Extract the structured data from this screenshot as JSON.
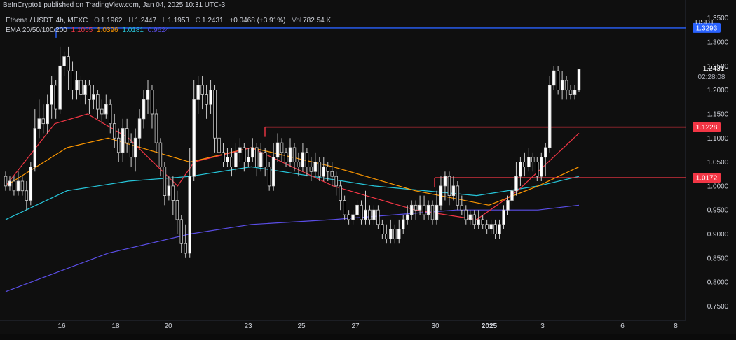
{
  "header": {
    "published": "BeInCrypto1 published on TradingView.com, Jan 04, 2025 10:31 UTC-3"
  },
  "legend": {
    "symbol": "Ethena / USDT, 4h, MEXC",
    "open_label": "O",
    "open": "1.1962",
    "high_label": "H",
    "high": "1.2447",
    "low_label": "L",
    "low": "1.1953",
    "close_label": "C",
    "close": "1.2431",
    "change": "+0.0468 (+3.91%)",
    "volume_label": "Vol",
    "volume": "782.54 K",
    "ema_label": "EMA 20/50/100/200",
    "ema20": "1.1055",
    "ema50": "1.0396",
    "ema100": "1.0181",
    "ema200": "0.9624"
  },
  "currency": "USDT",
  "colors": {
    "background": "#0f0f0f",
    "up_candle": "#ffffff",
    "down_candle": "#000000",
    "wick": "#cfcfcf",
    "ema20": "#f23645",
    "ema50": "#ff9800",
    "ema100": "#26c6da",
    "ema200": "#5b4ee8",
    "resistance": "#f23645",
    "high_line": "#2962ff",
    "axis_text": "#d1d4dc"
  },
  "chart_data": {
    "type": "candlestick",
    "y_ticks": [
      1.35,
      1.3,
      1.25,
      1.2,
      1.15,
      1.1,
      1.05,
      1.0,
      0.95,
      0.9,
      0.85,
      0.8,
      0.75
    ],
    "y_tick_labels": [
      "1.3500",
      "1.3000",
      "1.2500",
      "1.2000",
      "1.1500",
      "1.1000",
      "1.0500",
      "1.0000",
      "0.9500",
      "0.9000",
      "0.8500",
      "0.8000",
      "0.7500"
    ],
    "ylim": [
      0.72,
      1.37
    ],
    "x_ticks": [
      "16",
      "18",
      "20",
      "23",
      "25",
      "27",
      "30",
      "2025",
      "3",
      "6",
      "8"
    ],
    "levels": [
      {
        "value": 1.3293,
        "label": "1.3293",
        "color": "#2962ff"
      },
      {
        "value": 1.1228,
        "label": "1.1228",
        "color": "#f23645"
      },
      {
        "value": 1.0172,
        "label": "1.0172",
        "color": "#f23645"
      }
    ],
    "last_price": {
      "value": 1.2431,
      "label": "1.2431",
      "countdown": "02:28:08"
    },
    "candles": [
      [
        1.02,
        1.0,
        1.03,
        0.99
      ],
      [
        1.0,
        1.01,
        1.02,
        0.99
      ],
      [
        1.01,
        0.99,
        1.02,
        0.98
      ],
      [
        0.99,
        1.01,
        1.03,
        0.98
      ],
      [
        1.01,
        0.99,
        1.02,
        0.98
      ],
      [
        0.99,
        0.97,
        1.01,
        0.95
      ],
      [
        0.97,
        1.04,
        1.05,
        0.96
      ],
      [
        1.04,
        1.12,
        1.16,
        1.03
      ],
      [
        1.12,
        1.14,
        1.18,
        1.1
      ],
      [
        1.14,
        1.13,
        1.17,
        1.11
      ],
      [
        1.13,
        1.17,
        1.19,
        1.11
      ],
      [
        1.17,
        1.21,
        1.23,
        1.14
      ],
      [
        1.21,
        1.16,
        1.22,
        1.14
      ],
      [
        1.16,
        1.25,
        1.29,
        1.15
      ],
      [
        1.25,
        1.27,
        1.28,
        1.23
      ],
      [
        1.27,
        1.24,
        1.29,
        1.2
      ],
      [
        1.24,
        1.2,
        1.26,
        1.18
      ],
      [
        1.2,
        1.22,
        1.24,
        1.18
      ],
      [
        1.22,
        1.19,
        1.23,
        1.17
      ],
      [
        1.19,
        1.21,
        1.22,
        1.17
      ],
      [
        1.21,
        1.18,
        1.22,
        1.15
      ],
      [
        1.18,
        1.19,
        1.21,
        1.16
      ],
      [
        1.19,
        1.16,
        1.2,
        1.14
      ],
      [
        1.16,
        1.15,
        1.18,
        1.13
      ],
      [
        1.15,
        1.17,
        1.19,
        1.14
      ],
      [
        1.17,
        1.13,
        1.18,
        1.11
      ],
      [
        1.13,
        1.1,
        1.15,
        1.08
      ],
      [
        1.1,
        1.07,
        1.12,
        1.05
      ],
      [
        1.07,
        1.12,
        1.14,
        1.05
      ],
      [
        1.12,
        1.09,
        1.14,
        1.07
      ],
      [
        1.09,
        1.06,
        1.11,
        1.04
      ],
      [
        1.06,
        1.1,
        1.12,
        1.03
      ],
      [
        1.1,
        1.14,
        1.16,
        1.08
      ],
      [
        1.14,
        1.18,
        1.2,
        1.12
      ],
      [
        1.18,
        1.2,
        1.22,
        1.15
      ],
      [
        1.2,
        1.15,
        1.21,
        1.12
      ],
      [
        1.15,
        1.09,
        1.16,
        1.07
      ],
      [
        1.09,
        1.04,
        1.1,
        1.02
      ],
      [
        1.04,
        0.98,
        1.05,
        0.96
      ],
      [
        0.98,
        1.0,
        1.02,
        0.97
      ],
      [
        1.0,
        0.97,
        1.02,
        0.94
      ],
      [
        0.97,
        0.93,
        0.99,
        0.9
      ],
      [
        0.93,
        0.88,
        0.94,
        0.86
      ],
      [
        0.88,
        0.86,
        0.92,
        0.85
      ],
      [
        0.86,
        1.02,
        1.08,
        0.85
      ],
      [
        1.02,
        1.18,
        1.22,
        1.01
      ],
      [
        1.18,
        1.21,
        1.23,
        1.15
      ],
      [
        1.21,
        1.19,
        1.23,
        1.16
      ],
      [
        1.19,
        1.17,
        1.21,
        1.14
      ],
      [
        1.17,
        1.2,
        1.22,
        1.15
      ],
      [
        1.2,
        1.1,
        1.21,
        1.07
      ],
      [
        1.1,
        1.07,
        1.12,
        1.05
      ],
      [
        1.07,
        1.05,
        1.09,
        1.04
      ],
      [
        1.05,
        1.06,
        1.08,
        1.04
      ],
      [
        1.06,
        1.04,
        1.08,
        1.02
      ],
      [
        1.04,
        1.07,
        1.09,
        1.03
      ],
      [
        1.07,
        1.08,
        1.1,
        1.05
      ],
      [
        1.08,
        1.05,
        1.09,
        1.03
      ],
      [
        1.05,
        1.06,
        1.08,
        1.04
      ],
      [
        1.06,
        1.08,
        1.1,
        1.05
      ],
      [
        1.08,
        1.04,
        1.09,
        1.02
      ],
      [
        1.04,
        1.07,
        1.09,
        1.03
      ],
      [
        1.07,
        1.04,
        1.08,
        1.02
      ],
      [
        1.04,
        1.0,
        1.05,
        0.99
      ],
      [
        1.0,
        1.06,
        1.09,
        0.99
      ],
      [
        1.06,
        1.09,
        1.11,
        1.05
      ],
      [
        1.09,
        1.07,
        1.1,
        1.05
      ],
      [
        1.07,
        1.05,
        1.08,
        1.04
      ],
      [
        1.05,
        1.08,
        1.1,
        1.04
      ],
      [
        1.08,
        1.05,
        1.09,
        1.03
      ],
      [
        1.05,
        1.04,
        1.07,
        1.02
      ],
      [
        1.04,
        1.07,
        1.09,
        1.03
      ],
      [
        1.07,
        1.04,
        1.08,
        1.02
      ],
      [
        1.04,
        1.03,
        1.06,
        1.01
      ],
      [
        1.03,
        1.05,
        1.07,
        1.02
      ],
      [
        1.05,
        1.02,
        1.06,
        1.01
      ],
      [
        1.02,
        1.04,
        1.06,
        1.01
      ],
      [
        1.04,
        1.03,
        1.05,
        1.01
      ],
      [
        1.03,
        1.02,
        1.05,
        1.0
      ],
      [
        1.02,
        1.0,
        1.03,
        0.98
      ],
      [
        1.0,
        0.97,
        1.01,
        0.95
      ],
      [
        0.97,
        0.94,
        0.98,
        0.93
      ],
      [
        0.94,
        0.93,
        0.95,
        0.92
      ],
      [
        0.93,
        0.94,
        0.95,
        0.92
      ],
      [
        0.94,
        0.96,
        0.97,
        0.93
      ],
      [
        0.96,
        0.93,
        0.97,
        0.92
      ],
      [
        0.93,
        0.95,
        0.99,
        0.92
      ],
      [
        0.95,
        0.93,
        0.96,
        0.92
      ],
      [
        0.93,
        0.95,
        0.96,
        0.92
      ],
      [
        0.95,
        0.92,
        0.96,
        0.91
      ],
      [
        0.92,
        0.9,
        0.93,
        0.89
      ],
      [
        0.9,
        0.89,
        0.92,
        0.88
      ],
      [
        0.89,
        0.91,
        0.93,
        0.88
      ],
      [
        0.91,
        0.89,
        0.92,
        0.88
      ],
      [
        0.89,
        0.91,
        0.93,
        0.88
      ],
      [
        0.91,
        0.93,
        0.94,
        0.9
      ],
      [
        0.93,
        0.94,
        0.96,
        0.92
      ],
      [
        0.94,
        0.96,
        0.97,
        0.93
      ],
      [
        0.96,
        0.95,
        0.97,
        0.93
      ],
      [
        0.95,
        0.96,
        0.98,
        0.94
      ],
      [
        0.96,
        0.94,
        0.98,
        0.93
      ],
      [
        0.94,
        0.96,
        0.97,
        0.93
      ],
      [
        0.96,
        0.93,
        0.97,
        0.92
      ],
      [
        0.93,
        0.96,
        0.99,
        0.92
      ],
      [
        0.96,
        1.0,
        1.02,
        0.95
      ],
      [
        1.0,
        1.02,
        1.03,
        0.97
      ],
      [
        1.02,
        0.98,
        1.03,
        0.96
      ],
      [
        0.98,
        1.0,
        1.02,
        0.97
      ],
      [
        1.0,
        0.96,
        1.01,
        0.95
      ],
      [
        0.96,
        0.95,
        0.98,
        0.94
      ],
      [
        0.95,
        0.93,
        0.96,
        0.92
      ],
      [
        0.93,
        0.94,
        0.95,
        0.92
      ],
      [
        0.94,
        0.92,
        0.95,
        0.91
      ],
      [
        0.92,
        0.93,
        0.95,
        0.91
      ],
      [
        0.93,
        0.92,
        0.94,
        0.91
      ],
      [
        0.92,
        0.91,
        0.93,
        0.9
      ],
      [
        0.91,
        0.92,
        0.93,
        0.9
      ],
      [
        0.92,
        0.9,
        0.93,
        0.89
      ],
      [
        0.9,
        0.92,
        0.93,
        0.89
      ],
      [
        0.92,
        0.95,
        0.96,
        0.91
      ],
      [
        0.95,
        0.97,
        0.98,
        0.94
      ],
      [
        0.97,
        0.99,
        1.0,
        0.96
      ],
      [
        0.99,
        1.02,
        1.05,
        0.98
      ],
      [
        1.02,
        1.05,
        1.06,
        1.0
      ],
      [
        1.05,
        1.04,
        1.07,
        1.02
      ],
      [
        1.04,
        1.06,
        1.08,
        1.03
      ],
      [
        1.06,
        1.05,
        1.07,
        1.03
      ],
      [
        1.05,
        1.02,
        1.06,
        1.01
      ],
      [
        1.02,
        1.06,
        1.07,
        1.01
      ],
      [
        1.06,
        1.08,
        1.09,
        1.02
      ],
      [
        1.08,
        1.21,
        1.23,
        1.07
      ],
      [
        1.21,
        1.24,
        1.25,
        1.2
      ],
      [
        1.24,
        1.2,
        1.25,
        1.19
      ],
      [
        1.2,
        1.22,
        1.24,
        1.18
      ],
      [
        1.22,
        1.2,
        1.23,
        1.18
      ],
      [
        1.2,
        1.19,
        1.21,
        1.18
      ],
      [
        1.19,
        1.2,
        1.21,
        1.18
      ],
      [
        1.2,
        1.2431,
        1.2447,
        1.1953
      ]
    ],
    "ema20": [
      [
        0,
        1.0
      ],
      [
        12,
        1.13
      ],
      [
        20,
        1.15
      ],
      [
        30,
        1.1
      ],
      [
        42,
        1.0
      ],
      [
        46,
        1.05
      ],
      [
        60,
        1.08
      ],
      [
        80,
        1.0
      ],
      [
        100,
        0.95
      ],
      [
        115,
        0.93
      ],
      [
        125,
        0.99
      ],
      [
        140,
        1.11
      ]
    ],
    "ema50": [
      [
        0,
        1.0
      ],
      [
        15,
        1.08
      ],
      [
        25,
        1.1
      ],
      [
        45,
        1.05
      ],
      [
        60,
        1.08
      ],
      [
        80,
        1.04
      ],
      [
        100,
        0.99
      ],
      [
        118,
        0.96
      ],
      [
        130,
        1.0
      ],
      [
        140,
        1.04
      ]
    ],
    "ema100": [
      [
        0,
        0.93
      ],
      [
        15,
        0.99
      ],
      [
        30,
        1.01
      ],
      [
        45,
        1.02
      ],
      [
        60,
        1.04
      ],
      [
        90,
        1.0
      ],
      [
        115,
        0.98
      ],
      [
        130,
        1.0
      ],
      [
        140,
        1.02
      ]
    ],
    "ema200": [
      [
        0,
        0.78
      ],
      [
        25,
        0.86
      ],
      [
        45,
        0.9
      ],
      [
        60,
        0.92
      ],
      [
        80,
        0.93
      ],
      [
        110,
        0.95
      ],
      [
        130,
        0.95
      ],
      [
        140,
        0.96
      ]
    ]
  }
}
